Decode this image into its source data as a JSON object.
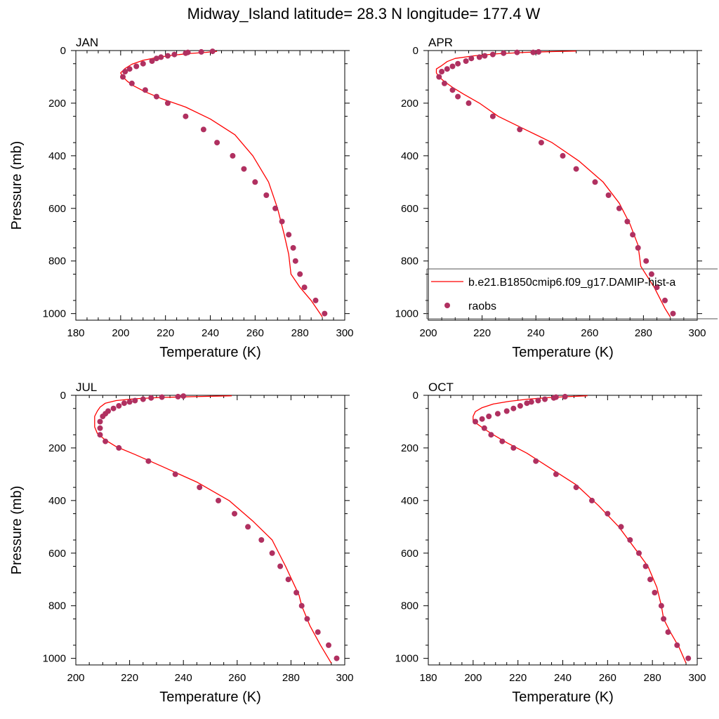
{
  "title": "Midway_Island  latitude= 28.3 N longitude= 177.4 W",
  "colors": {
    "model": "#ff0000",
    "obs": "#b03060"
  },
  "legend": {
    "placement": "inside APR panel, lower area",
    "model_label": "b.e21.B1850cmip6.f09_g17.DAMIP-hist-a",
    "obs_label": "raobs"
  },
  "chart_data": [
    {
      "type": "line+scatter",
      "panel": "JAN",
      "xlabel": "Temperature (K)",
      "ylabel": "Pressure (mb)",
      "xlim": [
        180,
        300
      ],
      "ylim": [
        1025,
        0
      ],
      "xticks": [
        180,
        200,
        220,
        240,
        260,
        280,
        300
      ],
      "yticks": [
        0,
        200,
        400,
        600,
        800,
        1000
      ],
      "legend": false,
      "model": [
        [
          243,
          3
        ],
        [
          238,
          7
        ],
        [
          231,
          11
        ],
        [
          224,
          17
        ],
        [
          217,
          25
        ],
        [
          210,
          37
        ],
        [
          205,
          52
        ],
        [
          202,
          68
        ],
        [
          200,
          85
        ],
        [
          201,
          100
        ],
        [
          203,
          117
        ],
        [
          206,
          135
        ],
        [
          211,
          157
        ],
        [
          218,
          182
        ],
        [
          229,
          215
        ],
        [
          240,
          260
        ],
        [
          251,
          320
        ],
        [
          259,
          400
        ],
        [
          266,
          500
        ],
        [
          270,
          600
        ],
        [
          273,
          700
        ],
        [
          275,
          775
        ],
        [
          276,
          850
        ],
        [
          280,
          900
        ],
        [
          285,
          950
        ],
        [
          289,
          1000
        ],
        [
          290,
          1013
        ]
      ],
      "obs": [
        [
          241,
          3
        ],
        [
          236,
          5
        ],
        [
          230,
          7
        ],
        [
          229,
          10
        ],
        [
          224,
          15
        ],
        [
          221,
          20
        ],
        [
          218,
          25
        ],
        [
          216,
          30
        ],
        [
          214,
          40
        ],
        [
          210,
          50
        ],
        [
          207,
          60
        ],
        [
          204,
          70
        ],
        [
          202,
          80
        ],
        [
          201,
          100
        ],
        [
          205,
          125
        ],
        [
          211,
          150
        ],
        [
          216,
          175
        ],
        [
          221,
          200
        ],
        [
          229,
          250
        ],
        [
          237,
          300
        ],
        [
          243,
          350
        ],
        [
          250,
          400
        ],
        [
          255,
          450
        ],
        [
          260,
          500
        ],
        [
          265,
          550
        ],
        [
          269,
          600
        ],
        [
          272,
          650
        ],
        [
          275,
          700
        ],
        [
          277,
          750
        ],
        [
          278,
          800
        ],
        [
          280,
          850
        ],
        [
          282,
          900
        ],
        [
          287,
          950
        ],
        [
          291,
          1000
        ]
      ]
    },
    {
      "type": "line+scatter",
      "panel": "APR",
      "xlabel": "Temperature (K)",
      "ylabel": "",
      "xlim": [
        200,
        300
      ],
      "ylim": [
        1025,
        0
      ],
      "xticks": [
        200,
        220,
        240,
        260,
        280,
        300
      ],
      "yticks": [
        0,
        200,
        400,
        600,
        800,
        1000
      ],
      "legend": true,
      "model": [
        [
          255,
          2
        ],
        [
          246,
          4
        ],
        [
          236,
          7
        ],
        [
          226,
          12
        ],
        [
          217,
          20
        ],
        [
          210,
          30
        ],
        [
          207,
          42
        ],
        [
          205,
          57
        ],
        [
          203,
          70
        ],
        [
          203,
          85
        ],
        [
          204,
          100
        ],
        [
          206,
          118
        ],
        [
          209,
          140
        ],
        [
          213,
          165
        ],
        [
          219,
          200
        ],
        [
          226,
          250
        ],
        [
          236,
          300
        ],
        [
          246,
          350
        ],
        [
          256,
          420
        ],
        [
          265,
          500
        ],
        [
          271,
          580
        ],
        [
          275,
          660
        ],
        [
          278,
          740
        ],
        [
          279,
          820
        ],
        [
          284,
          900
        ],
        [
          288,
          980
        ],
        [
          290,
          1013
        ]
      ],
      "obs": [
        [
          241,
          5
        ],
        [
          239,
          7
        ],
        [
          233,
          7
        ],
        [
          228,
          10
        ],
        [
          224,
          15
        ],
        [
          221,
          20
        ],
        [
          219,
          25
        ],
        [
          216,
          30
        ],
        [
          214,
          40
        ],
        [
          211,
          50
        ],
        [
          209,
          60
        ],
        [
          207,
          70
        ],
        [
          205,
          80
        ],
        [
          204,
          100
        ],
        [
          206,
          125
        ],
        [
          209,
          150
        ],
        [
          211,
          175
        ],
        [
          215,
          200
        ],
        [
          224,
          250
        ],
        [
          234,
          300
        ],
        [
          242,
          350
        ],
        [
          250,
          400
        ],
        [
          255,
          450
        ],
        [
          262,
          500
        ],
        [
          267,
          550
        ],
        [
          271,
          600
        ],
        [
          274,
          650
        ],
        [
          276,
          700
        ],
        [
          278,
          750
        ],
        [
          281,
          800
        ],
        [
          283,
          850
        ],
        [
          285,
          900
        ],
        [
          288,
          950
        ],
        [
          291,
          1000
        ]
      ]
    },
    {
      "type": "line+scatter",
      "panel": "JUL",
      "xlabel": "Temperature (K)",
      "ylabel": "Pressure (mb)",
      "xlim": [
        200,
        300
      ],
      "ylim": [
        1025,
        0
      ],
      "xticks": [
        200,
        220,
        240,
        260,
        280,
        300
      ],
      "yticks": [
        0,
        200,
        400,
        600,
        800,
        1000
      ],
      "legend": false,
      "model": [
        [
          258,
          2
        ],
        [
          244,
          5
        ],
        [
          232,
          8
        ],
        [
          222,
          13
        ],
        [
          215,
          20
        ],
        [
          211,
          30
        ],
        [
          209,
          45
        ],
        [
          208,
          60
        ],
        [
          207,
          80
        ],
        [
          207,
          100
        ],
        [
          207,
          120
        ],
        [
          208,
          145
        ],
        [
          211,
          170
        ],
        [
          215,
          195
        ],
        [
          222,
          225
        ],
        [
          232,
          270
        ],
        [
          245,
          330
        ],
        [
          257,
          400
        ],
        [
          266,
          480
        ],
        [
          273,
          550
        ],
        [
          278,
          650
        ],
        [
          283,
          760
        ],
        [
          284,
          800
        ],
        [
          287,
          875
        ],
        [
          291,
          950
        ],
        [
          295,
          1018
        ]
      ],
      "obs": [
        [
          240,
          3
        ],
        [
          238,
          5
        ],
        [
          232,
          7
        ],
        [
          228,
          10
        ],
        [
          225,
          15
        ],
        [
          222,
          20
        ],
        [
          220,
          25
        ],
        [
          218,
          30
        ],
        [
          216,
          40
        ],
        [
          214,
          50
        ],
        [
          212,
          60
        ],
        [
          211,
          70
        ],
        [
          210,
          80
        ],
        [
          209,
          100
        ],
        [
          209,
          125
        ],
        [
          209,
          150
        ],
        [
          211,
          175
        ],
        [
          216,
          200
        ],
        [
          227,
          250
        ],
        [
          237,
          300
        ],
        [
          246,
          350
        ],
        [
          253,
          400
        ],
        [
          259,
          450
        ],
        [
          264,
          500
        ],
        [
          269,
          550
        ],
        [
          273,
          600
        ],
        [
          276,
          650
        ],
        [
          279,
          700
        ],
        [
          282,
          750
        ],
        [
          284,
          800
        ],
        [
          286,
          850
        ],
        [
          290,
          900
        ],
        [
          294,
          950
        ],
        [
          297,
          1000
        ]
      ]
    },
    {
      "type": "line+scatter",
      "panel": "OCT",
      "xlabel": "Temperature (K)",
      "ylabel": "",
      "xlim": [
        180,
        300
      ],
      "ylim": [
        1025,
        0
      ],
      "xticks": [
        180,
        200,
        220,
        240,
        260,
        280,
        300
      ],
      "yticks": [
        0,
        200,
        400,
        600,
        800,
        1000
      ],
      "legend": false,
      "model": [
        [
          251,
          2
        ],
        [
          242,
          5
        ],
        [
          233,
          9
        ],
        [
          224,
          15
        ],
        [
          216,
          23
        ],
        [
          209,
          33
        ],
        [
          204,
          47
        ],
        [
          201,
          62
        ],
        [
          200,
          80
        ],
        [
          200,
          95
        ],
        [
          202,
          110
        ],
        [
          205,
          128
        ],
        [
          209,
          150
        ],
        [
          215,
          180
        ],
        [
          224,
          220
        ],
        [
          235,
          280
        ],
        [
          246,
          340
        ],
        [
          256,
          420
        ],
        [
          265,
          500
        ],
        [
          272,
          580
        ],
        [
          278,
          650
        ],
        [
          282,
          730
        ],
        [
          284,
          800
        ],
        [
          285,
          850
        ],
        [
          288,
          900
        ],
        [
          292,
          960
        ],
        [
          295,
          1018
        ]
      ],
      "obs": [
        [
          241,
          5
        ],
        [
          237,
          7
        ],
        [
          236,
          10
        ],
        [
          232,
          15
        ],
        [
          229,
          20
        ],
        [
          226,
          25
        ],
        [
          224,
          30
        ],
        [
          221,
          40
        ],
        [
          218,
          50
        ],
        [
          215,
          60
        ],
        [
          211,
          70
        ],
        [
          207,
          80
        ],
        [
          204,
          90
        ],
        [
          201,
          100
        ],
        [
          205,
          125
        ],
        [
          208,
          150
        ],
        [
          213,
          175
        ],
        [
          218,
          200
        ],
        [
          228,
          250
        ],
        [
          237,
          300
        ],
        [
          246,
          350
        ],
        [
          253,
          400
        ],
        [
          260,
          450
        ],
        [
          266,
          500
        ],
        [
          270,
          550
        ],
        [
          274,
          600
        ],
        [
          277,
          650
        ],
        [
          279,
          700
        ],
        [
          281,
          750
        ],
        [
          284,
          800
        ],
        [
          285,
          850
        ],
        [
          287,
          900
        ],
        [
          291,
          950
        ],
        [
          296,
          1000
        ]
      ]
    }
  ]
}
